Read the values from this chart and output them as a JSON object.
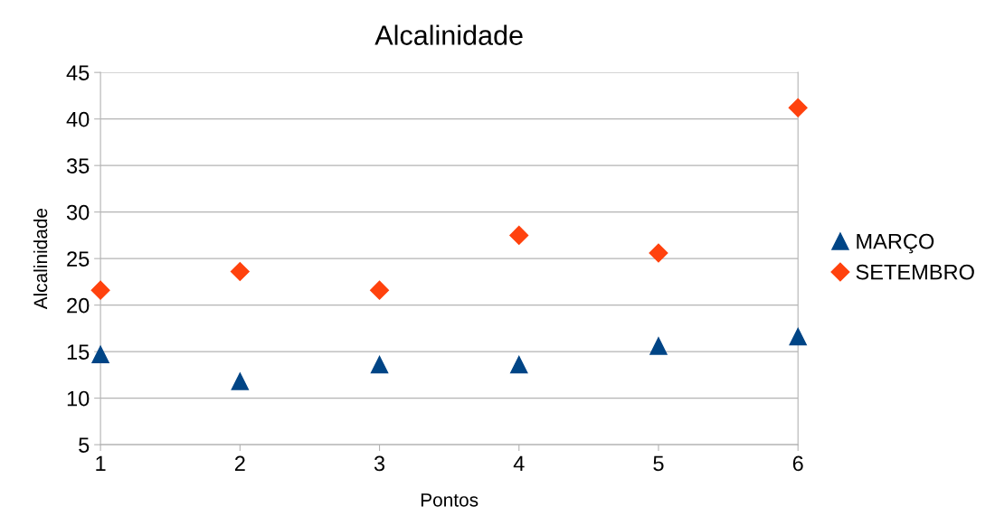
{
  "chart_data": {
    "type": "scatter",
    "title": "Alcalinidade",
    "xlabel": "Pontos",
    "ylabel": "Alcalinidade",
    "x": [
      1,
      2,
      3,
      4,
      5,
      6
    ],
    "series": [
      {
        "name": "MARÇO",
        "color": "#004586",
        "marker": "triangle",
        "values": [
          14.7,
          11.8,
          13.6,
          13.6,
          15.6,
          16.6
        ]
      },
      {
        "name": "SETEMBRO",
        "color": "#ff420e",
        "marker": "diamond",
        "values": [
          21.6,
          23.6,
          21.6,
          27.5,
          25.6,
          41.2
        ]
      }
    ],
    "xlim": [
      1,
      6
    ],
    "xticks": [
      1,
      2,
      3,
      4,
      5,
      6
    ],
    "ylim": [
      5,
      45
    ],
    "yticks": [
      5,
      10,
      15,
      20,
      25,
      30,
      35,
      40,
      45
    ],
    "grid": "y",
    "legend": "right"
  }
}
